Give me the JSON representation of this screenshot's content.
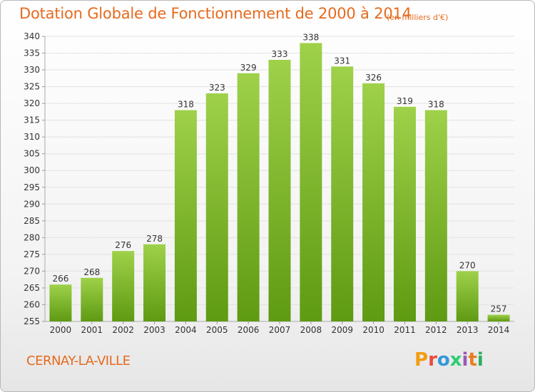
{
  "header": {
    "title": "Dotation Globale de Fonctionnement de 2000 à 2014",
    "subtitle": "(en milliers d'€)"
  },
  "footer": {
    "place": "CERNAY-LA-VILLE",
    "logo": "Proxiti",
    "logo_colors": [
      "#f39c12",
      "#e74c3c",
      "#3498db",
      "#2ecc71",
      "#9b59b6",
      "#e67e22",
      "#27ae60"
    ]
  },
  "chart_data": {
    "type": "bar",
    "categories": [
      "2000",
      "2001",
      "2002",
      "2003",
      "2004",
      "2005",
      "2006",
      "2007",
      "2008",
      "2009",
      "2010",
      "2011",
      "2012",
      "2013",
      "2014"
    ],
    "values": [
      266,
      268,
      276,
      278,
      318,
      323,
      329,
      333,
      338,
      331,
      326,
      319,
      318,
      270,
      257
    ],
    "ylim": [
      255,
      340
    ],
    "yticks": [
      255,
      260,
      265,
      270,
      275,
      280,
      285,
      290,
      295,
      300,
      305,
      310,
      315,
      320,
      325,
      330,
      335,
      340
    ],
    "grid": true,
    "bar_color_top": "#9fd14a",
    "bar_color_bottom": "#5e9a12"
  }
}
